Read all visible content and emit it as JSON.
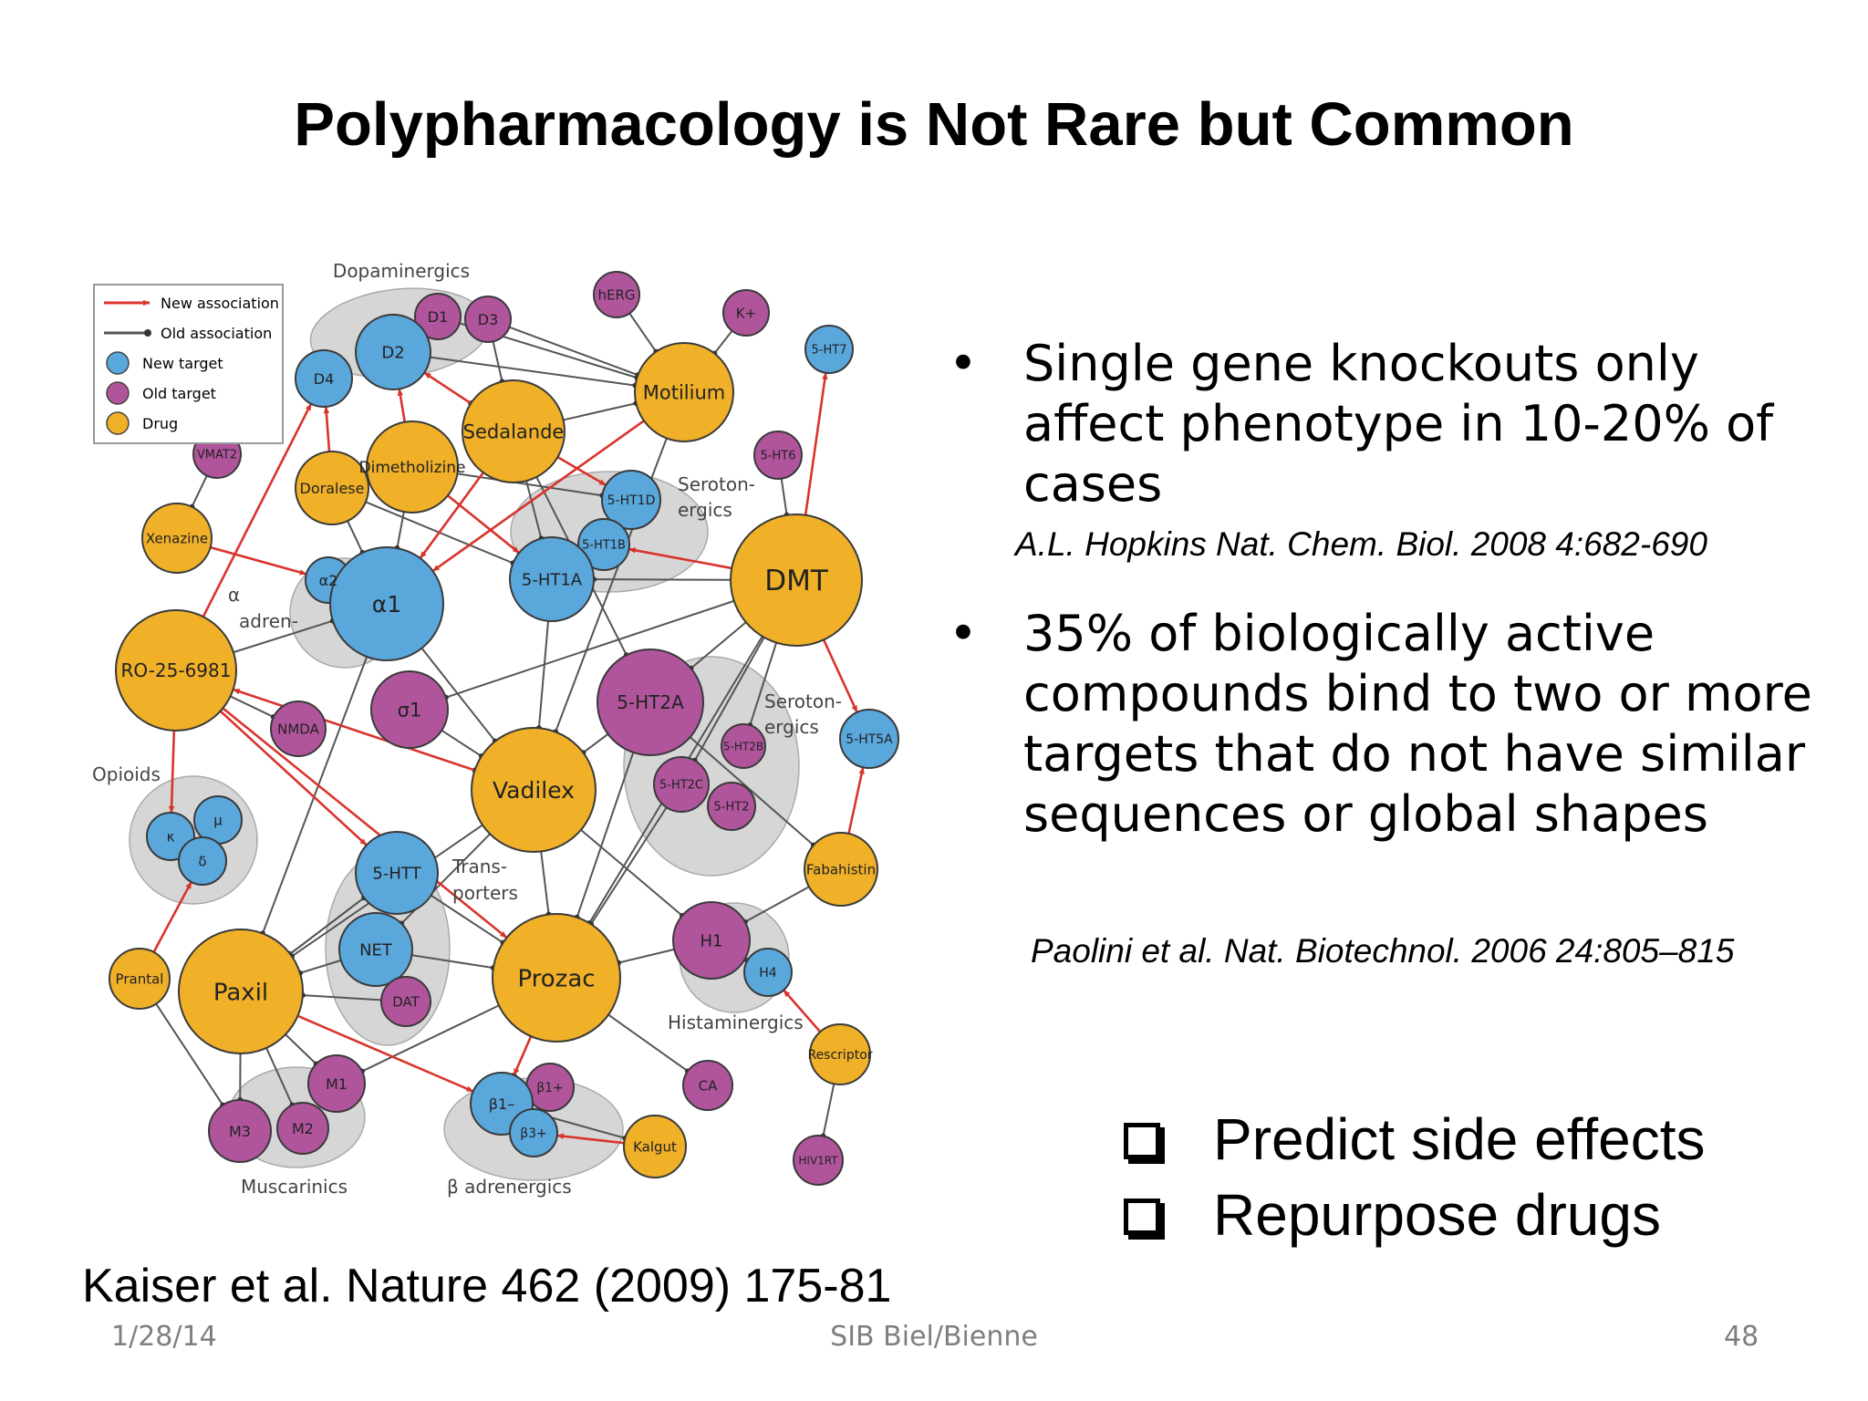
{
  "slide": {
    "title": "Polypharmacology is Not Rare but Common",
    "bullets": [
      {
        "marker": "•",
        "text": "Single gene knockouts only affect phenotype in 10-20% of cases",
        "citation": "A.L. Hopkins Nat. Chem. Biol. 2008 4:682-690"
      },
      {
        "marker": "•",
        "text": "35% of biologically active compounds bind to two or more targets that do not have similar sequences or global shapes",
        "citation": "Paolini et al. Nat. Biotechnol. 2006 24:805–815"
      }
    ],
    "actions": [
      "Predict side effects",
      "Repurpose drugs"
    ],
    "reference": "Kaiser et al. Nature 462 (2009) 175-81",
    "footer": {
      "date": "1/28/14",
      "center": "SIB  Biel/Bienne",
      "page": "48"
    }
  },
  "network": {
    "legend": {
      "new_association": "New association",
      "old_association": "Old association",
      "new_target": "New target",
      "old_target": "Old target",
      "drug": "Drug"
    },
    "colors": {
      "new_target": "#5aa7dc",
      "old_target": "#b0559c",
      "drug": "#f0b028",
      "group": "#d6d6d6",
      "new_edge": "#d9342c",
      "old_edge": "#555555"
    },
    "groups": {
      "dopaminergics": "Dopaminergics",
      "serotonergics_1": "Seroton- ergics",
      "alpha_adrenergics": "α adren- ergics",
      "serotonergics_2": "Seroton- ergics",
      "opioids": "Opioids",
      "transporters": "Trans- porters",
      "histaminergics": "Histaminergics",
      "muscarinics": "Muscarinics",
      "beta_adrenergics": "β adrenergics"
    },
    "nodes": {
      "hERG": "hERG",
      "D1": "D1",
      "D3": "D3",
      "Kplus": "K+",
      "D2": "D2",
      "D4": "D4",
      "Motilium": "Motilium",
      "HT7": "5-HT7",
      "Sedalande": "Sedalande",
      "VMAT2": "VMAT2",
      "HT6": "5-HT6",
      "Dimetholizine": "Dimetholizine",
      "Doralese": "Doralese",
      "HT1D": "5-HT1D",
      "Xenazine": "Xenazine",
      "HT1B": "5-HT1B",
      "DMT": "DMT",
      "a2": "α2",
      "HT1A": "5-HT1A",
      "a1": "α1",
      "RO": "RO-25-6981",
      "sigma1": "σ1",
      "HT2A": "5-HT2A",
      "NMDA": "NMDA",
      "HT5A": "5-HT5A",
      "HT2B": "5-HT2B",
      "Vadilex": "Vadilex",
      "HT2C": "5-HT2C",
      "HT2": "5-HT2",
      "kappa": "κ",
      "mu": "μ",
      "delta": "δ",
      "Fabahistin": "Fabahistin",
      "HTT": "5-HTT",
      "NET": "NET",
      "H1": "H1",
      "H4": "H4",
      "Prantal": "Prantal",
      "Paxil": "Paxil",
      "Prozac": "Prozac",
      "DAT": "DAT",
      "Rescriptor": "Rescriptor",
      "M1": "M1",
      "b1plus": "β1+",
      "b1minus": "β1–",
      "CA": "CA",
      "M3": "M3",
      "M2": "M2",
      "b3plus": "β3+",
      "Kalgut": "Kalgut",
      "HIV1RT": "HIV1RT"
    }
  }
}
